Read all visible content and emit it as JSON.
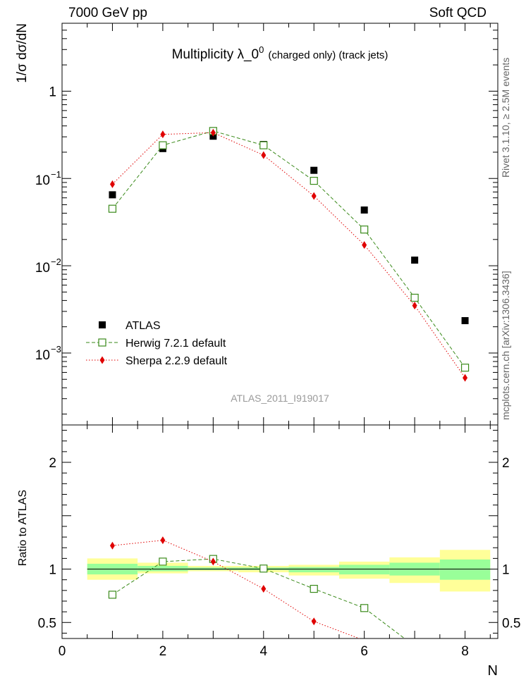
{
  "header": {
    "left": "7000 GeV pp",
    "right": "Soft QCD"
  },
  "side_labels": {
    "rivet": "Rivet 3.1.10, ≥ 2.5M events",
    "mcplots": "mcplots.cern.ch [arXiv:1306.3436]"
  },
  "watermark": "ATLAS_2011_I919017",
  "title": {
    "main": "Multiplicity  λ_0",
    "sup": "0",
    "tail": "(charged only) (track jets)"
  },
  "y_axis_label": "1/σ dσ/dN",
  "ratio_axis_label": "Ratio to ATLAS",
  "x_axis_label": "N",
  "colors": {
    "data": "#000000",
    "herwig": "#3a8a1a",
    "sherpa": "#e00000",
    "band_outer": "#ffff99",
    "band_inner": "#99ff99"
  },
  "chart_data": [
    {
      "type": "scatter",
      "panel": "main",
      "scale": "log",
      "xlim": [
        0,
        8.65
      ],
      "ylim": [
        0.00015,
        6
      ],
      "x_ticks": [
        0,
        2,
        4,
        6,
        8
      ],
      "y_ticks": [
        {
          "value": 1,
          "label": "1"
        },
        {
          "value": 0.1,
          "base": "10",
          "exp": "−1"
        },
        {
          "value": 0.01,
          "base": "10",
          "exp": "−2"
        },
        {
          "value": 0.001,
          "base": "10",
          "exp": "−3"
        }
      ],
      "series": [
        {
          "name": "ATLAS",
          "style": "data",
          "x": [
            1,
            2,
            3,
            4,
            5,
            6,
            7,
            8
          ],
          "y": [
            0.065,
            0.22,
            0.305,
            0.245,
            0.124,
            0.0435,
            0.0116,
            0.00235
          ]
        },
        {
          "name": "Herwig 7.2.1 default",
          "style": "herwig",
          "x": [
            1,
            2,
            3,
            4,
            5,
            6,
            7,
            8
          ],
          "y": [
            0.045,
            0.24,
            0.35,
            0.24,
            0.094,
            0.026,
            0.0043,
            0.00068
          ]
        },
        {
          "name": "Sherpa 2.2.9 default",
          "style": "sherpa",
          "x": [
            1,
            2,
            3,
            4,
            5,
            6,
            7,
            8
          ],
          "y": [
            0.086,
            0.32,
            0.335,
            0.185,
            0.063,
            0.0173,
            0.0035,
            0.00052
          ]
        }
      ]
    },
    {
      "type": "scatter",
      "panel": "ratio",
      "xlim": [
        0,
        8.65
      ],
      "ylim": [
        0.35,
        2.35
      ],
      "y_ticks": [
        {
          "value": 2,
          "label": "2"
        },
        {
          "value": 1.5,
          "label": ""
        },
        {
          "value": 1,
          "label": "1"
        },
        {
          "value": 0.5,
          "label": "0.5"
        }
      ],
      "bands": [
        {
          "x": [
            0.5,
            1.5
          ],
          "outer": [
            0.9,
            1.1
          ],
          "inner": [
            0.95,
            1.05
          ]
        },
        {
          "x": [
            1.5,
            2.5
          ],
          "outer": [
            0.96,
            1.06
          ],
          "inner": [
            0.98,
            1.03
          ]
        },
        {
          "x": [
            2.5,
            3.5
          ],
          "outer": [
            0.98,
            1.03
          ],
          "inner": [
            0.99,
            1.015
          ]
        },
        {
          "x": [
            3.5,
            4.5
          ],
          "outer": [
            0.97,
            1.03
          ],
          "inner": [
            0.99,
            1.015
          ]
        },
        {
          "x": [
            4.5,
            5.5
          ],
          "outer": [
            0.94,
            1.04
          ],
          "inner": [
            0.97,
            1.02
          ]
        },
        {
          "x": [
            5.5,
            6.5
          ],
          "outer": [
            0.91,
            1.07
          ],
          "inner": [
            0.95,
            1.04
          ]
        },
        {
          "x": [
            6.5,
            7.5
          ],
          "outer": [
            0.87,
            1.11
          ],
          "inner": [
            0.94,
            1.06
          ]
        },
        {
          "x": [
            7.5,
            8.5
          ],
          "outer": [
            0.79,
            1.18
          ],
          "inner": [
            0.9,
            1.09
          ]
        }
      ],
      "series": [
        {
          "name": "Herwig 7.2.1 default",
          "style": "herwig",
          "x": [
            1,
            2,
            3,
            4,
            5,
            6
          ],
          "y": [
            0.76,
            1.07,
            1.095,
            1.005,
            0.815,
            0.635
          ],
          "tail_to": [
            6.8,
            0.35
          ]
        },
        {
          "name": "Sherpa 2.2.9 default",
          "style": "sherpa",
          "x": [
            1,
            2,
            3,
            4,
            5
          ],
          "y": [
            1.22,
            1.27,
            1.07,
            0.815,
            0.51
          ],
          "tail_to": [
            5.9,
            0.35
          ]
        }
      ]
    }
  ]
}
